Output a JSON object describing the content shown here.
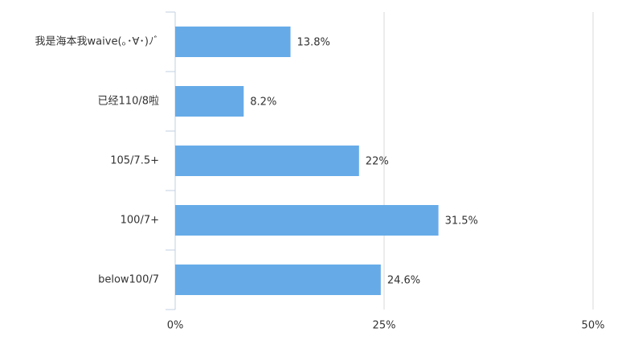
{
  "chart_data": {
    "type": "bar",
    "orientation": "horizontal",
    "categories": [
      "我是海本我waive(｡･∀･)ﾉﾞ",
      "已经110/8啦",
      "105/7.5+",
      "100/7+",
      "below100/7"
    ],
    "values": [
      13.8,
      8.2,
      22,
      31.5,
      24.6
    ],
    "value_labels": [
      "13.8%",
      "8.2%",
      "22%",
      "31.5%",
      "24.6%"
    ],
    "color": "#66abe8",
    "xlim": [
      0,
      50
    ],
    "xticks": [
      {
        "value": 0,
        "label": "0%"
      },
      {
        "value": 25,
        "label": "25%"
      },
      {
        "value": 50,
        "label": "50%"
      }
    ],
    "grid": true
  }
}
